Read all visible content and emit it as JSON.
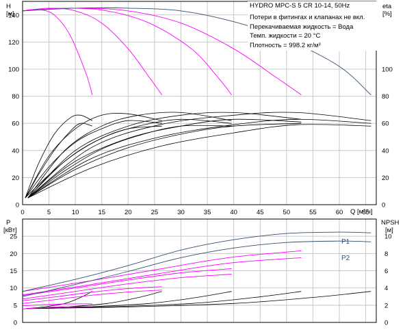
{
  "chart_data": [
    {
      "type": "line",
      "title": "HYDRO MPC-S 5 CR 10-14, 50Hz",
      "info_lines": [
        "Потери в фитингах и клапанах не вкл.",
        "Перекачиваемая жидкость = Вода",
        "Темп. жидкости = 20 °C",
        "Плотность = 998.2 кг/м³"
      ],
      "xlabel": "Q [м³/ч]",
      "ylabel_left": "H",
      "ylabel_left_unit": "[м]",
      "ylabel_right": "eta",
      "ylabel_right_unit": "[%]",
      "xlim": [
        0,
        67
      ],
      "xticks": [
        0,
        5,
        10,
        15,
        20,
        25,
        30,
        35,
        40,
        45,
        50,
        55,
        60,
        65
      ],
      "ylim_left": [
        0,
        150
      ],
      "yticks_left": [
        0,
        20,
        40,
        60,
        80,
        100,
        120,
        140
      ],
      "ylim_right": [
        0,
        150
      ],
      "yticks_right": [
        0,
        20,
        40,
        60,
        80,
        100
      ],
      "grid": true,
      "colors": {
        "head_curves": "#ff00ff",
        "max_curve": "#2f4f6f",
        "efficiency": "#000000",
        "grid": "#c8c8c8"
      },
      "head_series": [
        {
          "x": [
            0,
            3,
            6,
            9,
            12,
            13.2
          ],
          "y": [
            143,
            144,
            140,
            125,
            97,
            81
          ]
        },
        {
          "x": [
            0,
            5,
            10,
            15,
            20,
            24,
            26.4
          ],
          "y": [
            143,
            145,
            143,
            134,
            115,
            94,
            81
          ]
        },
        {
          "x": [
            0,
            8,
            16,
            24,
            32,
            37,
            39.6
          ],
          "y": [
            143,
            145,
            143,
            134,
            115,
            94,
            81
          ]
        },
        {
          "x": [
            0,
            10,
            20,
            30,
            40,
            48,
            52.8
          ],
          "y": [
            143,
            145,
            143,
            134,
            115,
            94,
            81
          ]
        },
        {
          "x": [
            0,
            10,
            20,
            30,
            40,
            50,
            60,
            66
          ],
          "y": [
            143,
            145,
            145,
            143,
            135,
            122,
            102,
            81
          ]
        }
      ],
      "efficiency_series": [
        {
          "x": [
            0.5,
            3,
            6,
            9,
            11,
            13.2
          ],
          "y": [
            5,
            30,
            52,
            64,
            66,
            62
          ]
        },
        {
          "x": [
            0.5,
            3,
            6,
            9,
            11,
            13.2
          ],
          "y": [
            5,
            22,
            40,
            54,
            60,
            58
          ]
        },
        {
          "x": [
            0.5,
            5,
            10,
            15,
            20,
            26.4
          ],
          "y": [
            5,
            36,
            56,
            66,
            67,
            62
          ]
        },
        {
          "x": [
            0.5,
            5,
            10,
            15,
            20,
            26.4
          ],
          "y": [
            5,
            28,
            46,
            56,
            62,
            60
          ]
        },
        {
          "x": [
            0.5,
            5,
            10,
            15,
            20,
            26.4
          ],
          "y": [
            5,
            22,
            38,
            49,
            56,
            58
          ]
        },
        {
          "x": [
            1,
            8,
            15,
            22,
            30,
            39.6
          ],
          "y": [
            5,
            40,
            58,
            66,
            68,
            62
          ]
        },
        {
          "x": [
            1,
            8,
            15,
            22,
            30,
            39.6
          ],
          "y": [
            5,
            32,
            49,
            58,
            63,
            60
          ]
        },
        {
          "x": [
            1,
            8,
            15,
            22,
            30,
            39.6
          ],
          "y": [
            5,
            25,
            41,
            51,
            58,
            58
          ]
        },
        {
          "x": [
            1,
            10,
            20,
            30,
            40,
            52.8
          ],
          "y": [
            5,
            40,
            58,
            66,
            68,
            63
          ]
        },
        {
          "x": [
            1,
            10,
            20,
            30,
            40,
            52.8
          ],
          "y": [
            5,
            32,
            49,
            58,
            63,
            61
          ]
        },
        {
          "x": [
            1,
            10,
            20,
            30,
            40,
            52.8
          ],
          "y": [
            5,
            26,
            42,
            52,
            58,
            60
          ]
        },
        {
          "x": [
            1,
            13,
            26,
            40,
            52,
            66
          ],
          "y": [
            5,
            42,
            59,
            66,
            68,
            62
          ]
        },
        {
          "x": [
            1,
            13,
            26,
            40,
            52,
            66
          ],
          "y": [
            5,
            34,
            50,
            59,
            63,
            60
          ]
        },
        {
          "x": [
            1,
            13,
            26,
            40,
            52,
            66
          ],
          "y": [
            5,
            27,
            43,
            53,
            59,
            58
          ]
        }
      ]
    },
    {
      "type": "line",
      "xlim": [
        0,
        67
      ],
      "xticks": [
        0,
        5,
        10,
        15,
        20,
        25,
        30,
        35,
        40,
        45,
        50,
        55,
        60,
        65
      ],
      "ylabel_left": "P",
      "ylabel_left_unit": "[кВт]",
      "ylabel_right": "NPSH",
      "ylabel_right_unit": "[м]",
      "ylim_left": [
        0,
        30
      ],
      "yticks_left": [
        0,
        5,
        10,
        15,
        20,
        25
      ],
      "ylim_right": [
        0,
        12
      ],
      "yticks_right": [
        0,
        2,
        4,
        6,
        8,
        10
      ],
      "grid": true,
      "colors": {
        "power_curves": "#ff00ff",
        "max_curves": "#2f4f6f",
        "npsh": "#000000"
      },
      "series_labels": [
        "P1",
        "P2"
      ],
      "max_power_series": [
        {
          "name": "P1",
          "x": [
            0,
            10,
            20,
            30,
            40,
            50,
            60,
            66
          ],
          "y": [
            9,
            12.5,
            16.5,
            21,
            24,
            25.8,
            26.2,
            26
          ]
        },
        {
          "name": "P2",
          "x": [
            0,
            10,
            20,
            30,
            40,
            50,
            60,
            66
          ],
          "y": [
            7.5,
            11,
            14.8,
            18.8,
            21.6,
            23.2,
            23.6,
            23.4
          ]
        }
      ],
      "power_series": [
        {
          "x": [
            0,
            6.6,
            13.2
          ],
          "y": [
            4.8,
            5.3,
            5.4
          ]
        },
        {
          "x": [
            0,
            6.6,
            13.2
          ],
          "y": [
            3.9,
            4.5,
            4.6
          ]
        },
        {
          "x": [
            0,
            6.6,
            13.2,
            19.8,
            26.4
          ],
          "y": [
            6.3,
            7.5,
            8.8,
            9.8,
            10.4
          ]
        },
        {
          "x": [
            0,
            6.6,
            13.2,
            19.8,
            26.4
          ],
          "y": [
            5.5,
            6.7,
            7.9,
            8.8,
            9.4
          ]
        },
        {
          "x": [
            0,
            10,
            20,
            30,
            39.6
          ],
          "y": [
            7.8,
            10,
            12.3,
            14.4,
            15.6
          ]
        },
        {
          "x": [
            0,
            10,
            20,
            30,
            39.6
          ],
          "y": [
            6.8,
            9,
            11.2,
            13,
            14
          ]
        },
        {
          "x": [
            0,
            13,
            26,
            39,
            52.8
          ],
          "y": [
            9,
            12.1,
            15.5,
            18.8,
            20.8
          ]
        },
        {
          "x": [
            0,
            13,
            26,
            39,
            52.8
          ],
          "y": [
            8,
            11,
            14.2,
            17.2,
            18.8
          ]
        }
      ],
      "npsh_series": [
        {
          "x": [
            0.5,
            4,
            8,
            11,
            13.2
          ],
          "y": [
            1.6,
            1.8,
            2.2,
            2.9,
            3.6
          ]
        },
        {
          "x": [
            0.5,
            8,
            16,
            22,
            26.4
          ],
          "y": [
            1.6,
            1.8,
            2.2,
            2.9,
            3.6
          ]
        },
        {
          "x": [
            0.5,
            12,
            24,
            33,
            39.6
          ],
          "y": [
            1.6,
            1.8,
            2.2,
            2.9,
            3.6
          ]
        },
        {
          "x": [
            0.5,
            16,
            32,
            44,
            52.8
          ],
          "y": [
            1.6,
            1.8,
            2.2,
            2.9,
            3.6
          ]
        },
        {
          "x": [
            0.5,
            20,
            40,
            55,
            66
          ],
          "y": [
            1.6,
            1.8,
            2.2,
            2.9,
            3.6
          ]
        }
      ]
    }
  ]
}
